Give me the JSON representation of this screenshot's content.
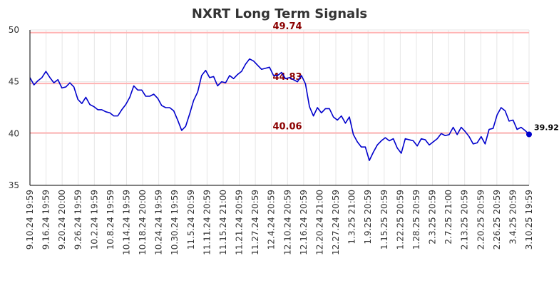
{
  "chart_data": {
    "type": "line",
    "title": "NXRT Long Term Signals",
    "xlabel": "",
    "ylabel": "",
    "ylim": [
      35,
      50
    ],
    "yticks": [
      35,
      40,
      45,
      50
    ],
    "grid": true,
    "x_tick_labels": [
      "9.10.24 19:59",
      "9.16.24 19:59",
      "9.20.24 20:00",
      "9.26.24 19:59",
      "10.2.24 19:59",
      "10.8.24 19:59",
      "10.14.24 19:59",
      "10.18.24 20:00",
      "10.24.24 19:59",
      "10.30.24 19:59",
      "11.5.24 20:59",
      "11.11.24 20:59",
      "11.15.24 21:00",
      "11.21.24 20:59",
      "11.27.24 20:59",
      "12.4.24 20:59",
      "12.10.24 20:59",
      "12.16.24 20:59",
      "12.20.24 21:00",
      "12.27.24 20:59",
      "1.3.25 21:00",
      "1.9.25 20:59",
      "1.15.25 20:59",
      "1.22.25 20:59",
      "1.28.25 20:59",
      "2.3.25 20:59",
      "2.7.25 21:00",
      "2.13.25 20:59",
      "2.20.25 20:59",
      "2.26.25 20:59",
      "3.4.25 20:59",
      "3.10.25 19:59"
    ],
    "series": [
      {
        "color": "#0000cc",
        "values": [
          45.4,
          44.7,
          45.1,
          45.4,
          46.0,
          45.4,
          44.9,
          45.2,
          44.4,
          44.5,
          44.9,
          44.5,
          43.3,
          42.9,
          43.5,
          42.8,
          42.6,
          42.3,
          42.3,
          42.1,
          42.0,
          41.7,
          41.7,
          42.3,
          42.8,
          43.5,
          44.6,
          44.2,
          44.2,
          43.6,
          43.6,
          43.8,
          43.4,
          42.7,
          42.5,
          42.5,
          42.2,
          41.3,
          40.3,
          40.7,
          41.9,
          43.2,
          44.0,
          45.6,
          46.1,
          45.4,
          45.5,
          44.6,
          45.0,
          44.9,
          45.6,
          45.3,
          45.7,
          46.0,
          46.7,
          47.2,
          47.0,
          46.6,
          46.2,
          46.3,
          46.4,
          45.6,
          45.6,
          45.9,
          45.3,
          45.4,
          45.2,
          45.0,
          45.6,
          44.8,
          42.6,
          41.7,
          42.5,
          42.0,
          42.4,
          42.4,
          41.6,
          41.3,
          41.7,
          41.0,
          41.6,
          39.9,
          39.2,
          38.7,
          38.7,
          37.4,
          38.2,
          38.9,
          39.3,
          39.6,
          39.3,
          39.5,
          38.6,
          38.1,
          39.5,
          39.4,
          39.3,
          38.8,
          39.5,
          39.4,
          38.9,
          39.2,
          39.5,
          40.0,
          39.8,
          39.9,
          40.6,
          39.9,
          40.6,
          40.2,
          39.7,
          39.0,
          39.1,
          39.7,
          39.0,
          40.4,
          40.5,
          41.8,
          42.5,
          42.2,
          41.2,
          41.3,
          40.4,
          40.6,
          40.3,
          39.92
        ]
      }
    ],
    "levels": [
      {
        "value": 49.74,
        "label": "49.74",
        "color": "#ffb3b3",
        "label_color": "#8b0000"
      },
      {
        "value": 44.83,
        "label": "44.83",
        "color": "#ffb3b3",
        "label_color": "#8b0000"
      },
      {
        "value": 40.06,
        "label": "40.06",
        "color": "#ffb3b3",
        "label_color": "#8b0000"
      }
    ],
    "last_value_label": "39.92",
    "marker_color": "#0000cc",
    "legend": "none"
  }
}
